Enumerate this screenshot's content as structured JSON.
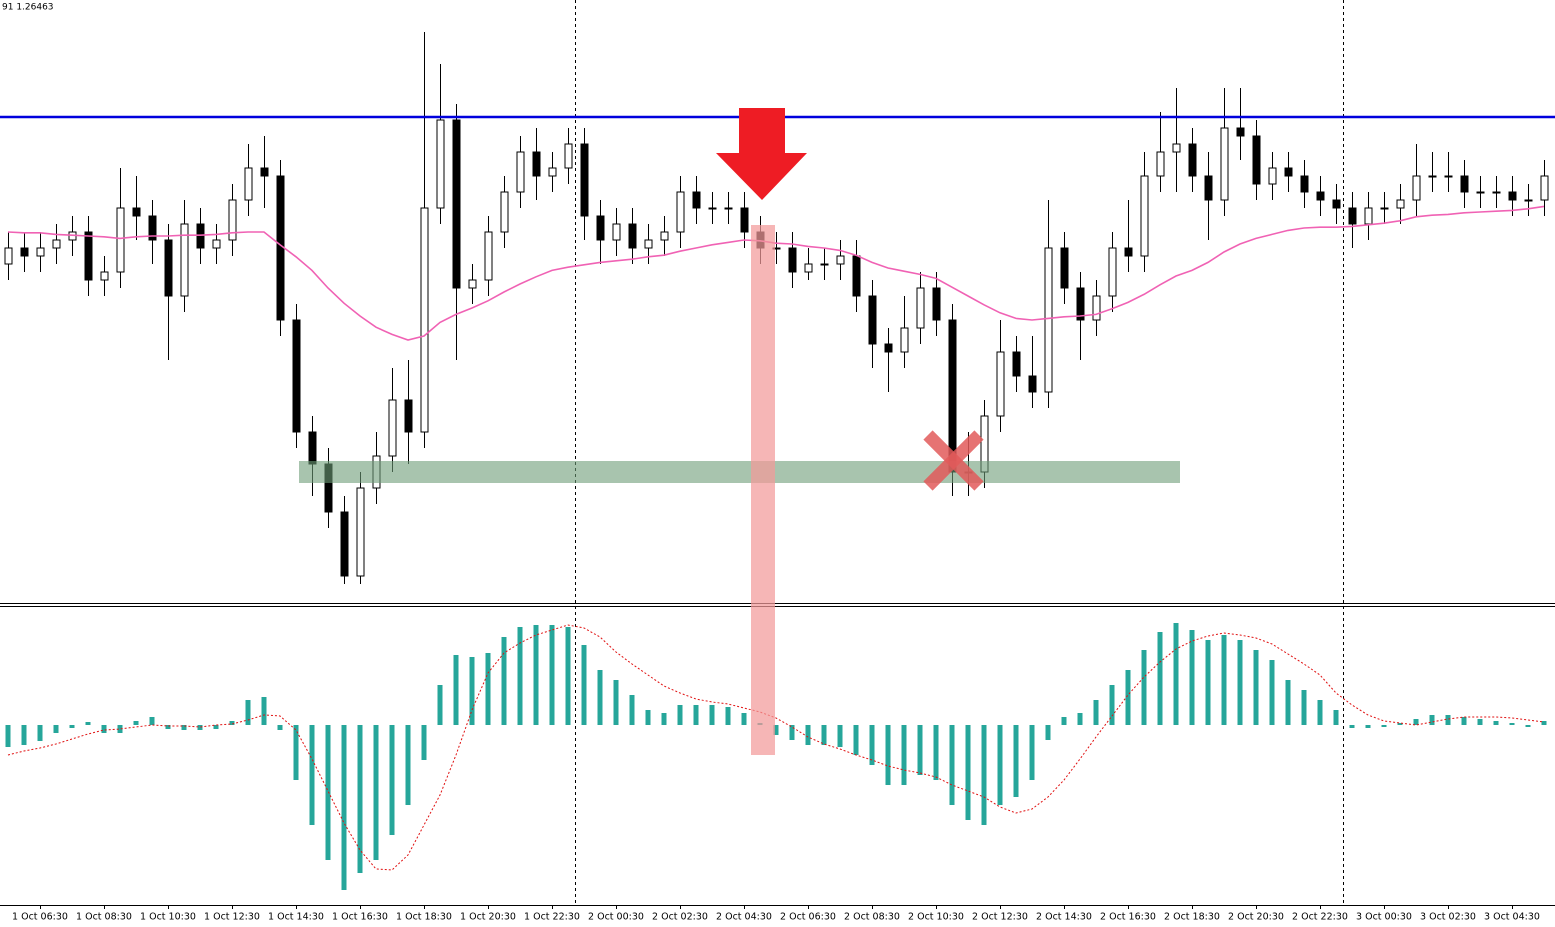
{
  "chart_data": {
    "type": "candlestick",
    "info": "91 1.26463",
    "categories": [
      null,
      null,
      "1 Oct 06:30",
      null,
      null,
      null,
      "1 Oct 08:30",
      null,
      null,
      null,
      "1 Oct 10:30",
      null,
      null,
      null,
      "1 Oct 12:30",
      null,
      null,
      null,
      "1 Oct 14:30",
      null,
      null,
      null,
      "1 Oct 16:30",
      null,
      null,
      null,
      "1 Oct 18:30",
      null,
      null,
      null,
      "1 Oct 20:30",
      null,
      null,
      null,
      "1 Oct 22:30",
      null,
      null,
      null,
      "2 Oct 00:30",
      null,
      null,
      null,
      "2 Oct 02:30",
      null,
      null,
      null,
      "2 Oct 04:30",
      null,
      null,
      null,
      "2 Oct 06:30",
      null,
      null,
      null,
      "2 Oct 08:30",
      null,
      null,
      null,
      "2 Oct 10:30",
      null,
      null,
      null,
      "2 Oct 12:30",
      null,
      null,
      null,
      "2 Oct 14:30",
      null,
      null,
      null,
      "2 Oct 16:30",
      null,
      null,
      null,
      "2 Oct 18:30",
      null,
      null,
      null,
      "2 Oct 20:30",
      null,
      null,
      null,
      "2 Oct 22:30",
      null,
      null,
      null,
      "3 Oct 00:30",
      null,
      null,
      null,
      "3 Oct 02:30",
      null,
      null,
      null,
      "3 Oct 04:30",
      null,
      null
    ],
    "open": [
      1.2632,
      1.2634,
      1.2633,
      1.2634,
      1.2635,
      1.2636,
      1.263,
      1.2631,
      1.2639,
      1.2638,
      1.2635,
      1.2628,
      1.2637,
      1.2634,
      1.2635,
      1.264,
      1.2644,
      1.2643,
      1.2625,
      1.2611,
      1.2607,
      1.2601,
      1.2593,
      1.2604,
      1.2608,
      1.2615,
      1.2611,
      1.2639,
      1.265,
      1.2629,
      1.263,
      1.2636,
      1.2641,
      1.2646,
      1.2643,
      1.2644,
      1.2647,
      1.2638,
      1.2635,
      1.2637,
      1.2634,
      1.2635,
      1.2636,
      1.2641,
      1.2639,
      1.2639,
      1.2639,
      1.2636,
      1.2634,
      1.2634,
      1.2631,
      1.2632,
      1.2632,
      1.2633,
      1.2628,
      1.2622,
      1.2621,
      1.2624,
      1.2629,
      1.2625,
      1.2606,
      1.2606,
      1.2613,
      1.2621,
      1.2618,
      1.2616,
      1.2634,
      1.2629,
      1.2625,
      1.2628,
      1.2634,
      1.2633,
      1.2643,
      1.2646,
      1.2647,
      1.2643,
      1.264,
      1.2649,
      1.2648,
      1.2642,
      1.2644,
      1.2643,
      1.2641,
      1.264,
      1.2639,
      1.2637,
      1.2639,
      1.2639,
      1.264,
      1.2643,
      1.2643,
      1.2643,
      1.2641,
      1.2641,
      1.2641,
      1.264,
      1.264
    ],
    "high": [
      1.2636,
      1.2636,
      1.2636,
      1.2637,
      1.2638,
      1.2638,
      1.2633,
      1.2644,
      1.2643,
      1.264,
      1.2637,
      1.264,
      1.2639,
      1.2637,
      1.2642,
      1.2647,
      1.2648,
      1.2645,
      1.2627,
      1.2613,
      1.2609,
      1.2603,
      1.2606,
      1.2611,
      1.2619,
      1.262,
      1.2661,
      1.2657,
      1.2652,
      1.2632,
      1.2638,
      1.2643,
      1.2648,
      1.2649,
      1.2646,
      1.2649,
      1.2649,
      1.264,
      1.2639,
      1.2639,
      1.2637,
      1.2638,
      1.2643,
      1.2643,
      1.2641,
      1.2641,
      1.2641,
      1.2638,
      1.2636,
      1.2636,
      1.2634,
      1.2634,
      1.2635,
      1.2635,
      1.263,
      1.2624,
      1.2628,
      1.2631,
      1.2631,
      1.2627,
      1.2611,
      1.2615,
      1.2625,
      1.2623,
      1.2623,
      1.264,
      1.2636,
      1.2631,
      1.263,
      1.2636,
      1.264,
      1.2646,
      1.2651,
      1.2654,
      1.2649,
      1.2646,
      1.2654,
      1.2654,
      1.265,
      1.2646,
      1.2646,
      1.2645,
      1.2643,
      1.2642,
      1.2641,
      1.2641,
      1.2641,
      1.2642,
      1.2647,
      1.2646,
      1.2646,
      1.2645,
      1.2643,
      1.2643,
      1.2643,
      1.2642,
      1.2645
    ],
    "low": [
      1.263,
      1.2631,
      1.2631,
      1.2632,
      1.2633,
      1.2628,
      1.2628,
      1.2629,
      1.2635,
      1.2632,
      1.262,
      1.2626,
      1.2632,
      1.2632,
      1.2633,
      1.2638,
      1.2639,
      1.2623,
      1.2609,
      1.2603,
      1.2599,
      1.2592,
      1.2592,
      1.2602,
      1.2606,
      1.2607,
      1.2609,
      1.2637,
      1.262,
      1.2627,
      1.2628,
      1.2634,
      1.2639,
      1.264,
      1.2641,
      1.2642,
      1.2635,
      1.2632,
      1.2633,
      1.2632,
      1.2632,
      1.2633,
      1.2634,
      1.2637,
      1.2637,
      1.2637,
      1.2634,
      1.2632,
      1.2632,
      1.2629,
      1.263,
      1.263,
      1.263,
      1.2626,
      1.2619,
      1.2616,
      1.2619,
      1.2622,
      1.2623,
      1.2603,
      1.2603,
      1.2604,
      1.2611,
      1.2616,
      1.2614,
      1.2614,
      1.2627,
      1.262,
      1.2623,
      1.2626,
      1.2631,
      1.2631,
      1.2641,
      1.2641,
      1.2641,
      1.2635,
      1.2638,
      1.2645,
      1.264,
      1.264,
      1.2641,
      1.2639,
      1.2638,
      1.2637,
      1.2634,
      1.2635,
      1.2637,
      1.2637,
      1.2638,
      1.2641,
      1.2641,
      1.2639,
      1.2639,
      1.2639,
      1.2638,
      1.2638,
      1.2638
    ],
    "close": [
      1.2634,
      1.2633,
      1.2634,
      1.2635,
      1.2636,
      1.263,
      1.2631,
      1.2639,
      1.2638,
      1.2635,
      1.2628,
      1.2637,
      1.2634,
      1.2635,
      1.264,
      1.2644,
      1.2643,
      1.2625,
      1.2611,
      1.2607,
      1.2601,
      1.2593,
      1.2604,
      1.2608,
      1.2615,
      1.2611,
      1.2639,
      1.265,
      1.2629,
      1.263,
      1.2636,
      1.2641,
      1.2646,
      1.2643,
      1.2644,
      1.2647,
      1.2638,
      1.2635,
      1.2637,
      1.2634,
      1.2635,
      1.2636,
      1.2641,
      1.2639,
      1.2639,
      1.2639,
      1.2636,
      1.2634,
      1.2634,
      1.2631,
      1.2632,
      1.2632,
      1.2633,
      1.2628,
      1.2622,
      1.2621,
      1.2624,
      1.2629,
      1.2625,
      1.2606,
      1.2606,
      1.2613,
      1.2621,
      1.2618,
      1.2616,
      1.2634,
      1.2629,
      1.2625,
      1.2628,
      1.2634,
      1.2633,
      1.2643,
      1.2646,
      1.2647,
      1.2643,
      1.264,
      1.2649,
      1.2648,
      1.2642,
      1.2644,
      1.2643,
      1.2641,
      1.264,
      1.2639,
      1.2637,
      1.2639,
      1.2639,
      1.264,
      1.2643,
      1.2643,
      1.2643,
      1.2641,
      1.2641,
      1.2641,
      1.264,
      1.264,
      1.2643
    ],
    "up_color": "#ffffff",
    "down_color": "#000000",
    "ylim": [
      1.259,
      1.2665
    ],
    "ma": {
      "color": "#f062b4",
      "values": [
        1.2636,
        1.26359,
        1.26359,
        1.26357,
        1.26356,
        1.26355,
        1.26354,
        1.26352,
        1.26354,
        1.26355,
        1.26355,
        1.26356,
        1.26356,
        1.26357,
        1.26359,
        1.2636,
        1.2636,
        1.26344,
        1.26329,
        1.26312,
        1.2629,
        1.26271,
        1.26255,
        1.26241,
        1.26232,
        1.26225,
        1.2623,
        1.26247,
        1.26257,
        1.26265,
        1.26274,
        1.26285,
        1.26295,
        1.26304,
        1.26312,
        1.26316,
        1.26319,
        1.26322,
        1.26324,
        1.26326,
        1.26329,
        1.26331,
        1.26336,
        1.2634,
        1.26344,
        1.26347,
        1.2635,
        1.26349,
        1.26346,
        1.26345,
        1.26342,
        1.2634,
        1.26337,
        1.26331,
        1.26322,
        1.26315,
        1.26311,
        1.26307,
        1.26302,
        1.26291,
        1.2628,
        1.26269,
        1.26259,
        1.26252,
        1.2625,
        1.26252,
        1.26254,
        1.26255,
        1.26257,
        1.26264,
        1.26272,
        1.26282,
        1.26294,
        1.26305,
        1.26312,
        1.26322,
        1.26335,
        1.26345,
        1.26352,
        1.26357,
        1.26362,
        1.26365,
        1.26366,
        1.26366,
        1.26367,
        1.26369,
        1.26371,
        1.26374,
        1.26379,
        1.26381,
        1.26382,
        1.26384,
        1.26385,
        1.26386,
        1.26387,
        1.26389,
        1.26392
      ]
    },
    "macd": {
      "ylim": [
        -0.0009,
        0.00059
      ],
      "histogram": {
        "color": "#26a69a",
        "values": [
          -0.00011,
          -0.0001,
          -8e-05,
          -4e-05,
          -1.5e-05,
          1.5e-05,
          -4e-05,
          -4e-05,
          2e-05,
          4e-05,
          -2e-05,
          -2.5e-05,
          -2.5e-05,
          -2e-05,
          2e-05,
          0.000125,
          0.00014,
          -2.5e-05,
          -0.000275,
          -0.0005,
          -0.000675,
          -0.000825,
          -0.00074,
          -0.000675,
          -0.00055,
          -0.0004,
          -0.000175,
          0.0002,
          0.00035,
          0.00034,
          0.00036,
          0.00044,
          0.00049,
          0.0005,
          0.0005,
          0.00049,
          0.0004,
          0.000275,
          0.000225,
          0.00015,
          7.5e-05,
          6e-05,
          0.0001,
          0.0001,
          0.0001,
          9e-05,
          6e-05,
          1e-05,
          -5e-05,
          -7.5e-05,
          -0.0001,
          -0.0001,
          -0.00011,
          -0.00015,
          -0.0002,
          -0.0003,
          -0.0003,
          -0.00025,
          -0.000275,
          -0.0004,
          -0.000475,
          -0.0005,
          -0.0004,
          -0.00036,
          -0.000275,
          -7.5e-05,
          4e-05,
          6e-05,
          0.000125,
          0.0002,
          0.000275,
          0.000375,
          0.000465,
          0.00051,
          0.000475,
          0.000425,
          0.00045,
          0.000425,
          0.000375,
          0.000325,
          0.000225,
          0.000175,
          0.000125,
          7.5e-05,
          -1.5e-05,
          -1.5e-05,
          -1e-05,
          1e-05,
          3e-05,
          5e-05,
          5e-05,
          4e-05,
          3e-05,
          2e-05,
          1e-05,
          -1e-05,
          2e-05
        ]
      },
      "signal": {
        "color": "#e01010",
        "values": [
          -0.00015,
          -0.00013,
          -0.000115,
          -9.5e-05,
          -7e-05,
          -4.5e-05,
          -2.5e-05,
          -2e-05,
          -1e-05,
          0,
          -5e-06,
          -5e-06,
          -1e-05,
          0,
          5e-06,
          2.5e-05,
          5e-05,
          4.5e-05,
          -2.5e-05,
          -0.00017,
          -0.00033,
          -0.00049,
          -0.000625,
          -0.00072,
          -0.000725,
          -0.00065,
          -0.0005,
          -0.00035,
          -0.00015,
          7.5e-05,
          0.00026,
          0.00036,
          0.00041,
          0.00045,
          0.000475,
          0.0005,
          0.000485,
          0.00044,
          0.000365,
          0.000305,
          0.00025,
          0.000195,
          0.00016,
          0.00013,
          0.000115,
          0.000105,
          8.5e-05,
          6.5e-05,
          3.5e-05,
          -1e-05,
          -6e-05,
          -9.5e-05,
          -0.00012,
          -0.00015,
          -0.000175,
          -0.000205,
          -0.000225,
          -0.00024,
          -0.00026,
          -0.0003,
          -0.00033,
          -0.00036,
          -0.00041,
          -0.00044,
          -0.00042,
          -0.00036,
          -0.000275,
          -0.00017,
          -6e-05,
          4.5e-05,
          0.00015,
          0.00024,
          0.000315,
          0.00038,
          0.00042,
          0.000445,
          0.00046,
          0.00045,
          0.000435,
          0.000405,
          0.000355,
          0.000305,
          0.00025,
          0.00016,
          0.0001,
          5e-05,
          2e-05,
          1e-05,
          0,
          1.5e-05,
          3e-05,
          4e-05,
          4e-05,
          4e-05,
          3.5e-05,
          2.5e-05,
          1.5e-05
        ]
      }
    }
  }
}
